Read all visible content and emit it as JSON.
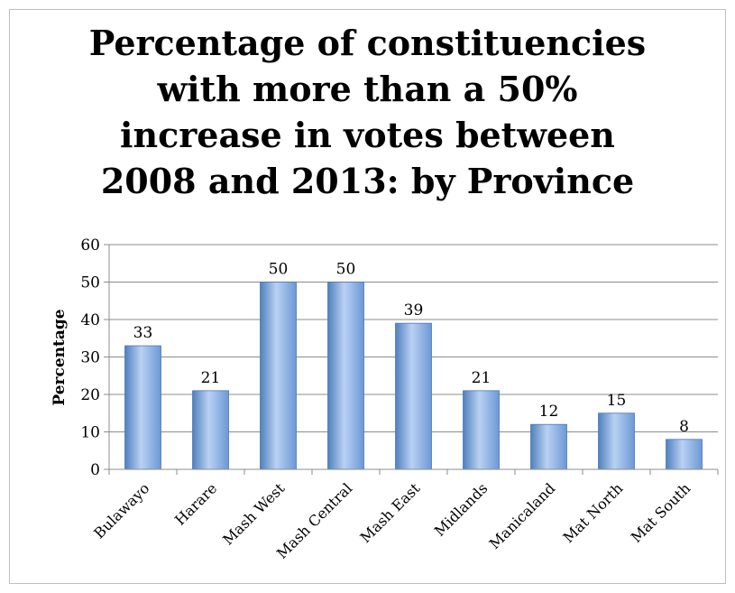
{
  "chart_data": {
    "type": "bar",
    "title": "Percentage of constituencies\nwith more than a 50%\nincrease in votes between\n2008 and 2013: by Province",
    "xlabel": "",
    "ylabel": "Percentage",
    "categories": [
      "Bulawayo",
      "Harare",
      "Mash West",
      "Mash Central",
      "Mash East",
      "Midlands",
      "Manicaland",
      "Mat North",
      "Mat South"
    ],
    "values": [
      33,
      21,
      50,
      50,
      39,
      21,
      12,
      15,
      8
    ],
    "ylim": [
      0,
      60
    ],
    "yticks": [
      0,
      10,
      20,
      30,
      40,
      50,
      60
    ],
    "grid": true,
    "legend": "none",
    "bar_color": "#4f81bd"
  }
}
